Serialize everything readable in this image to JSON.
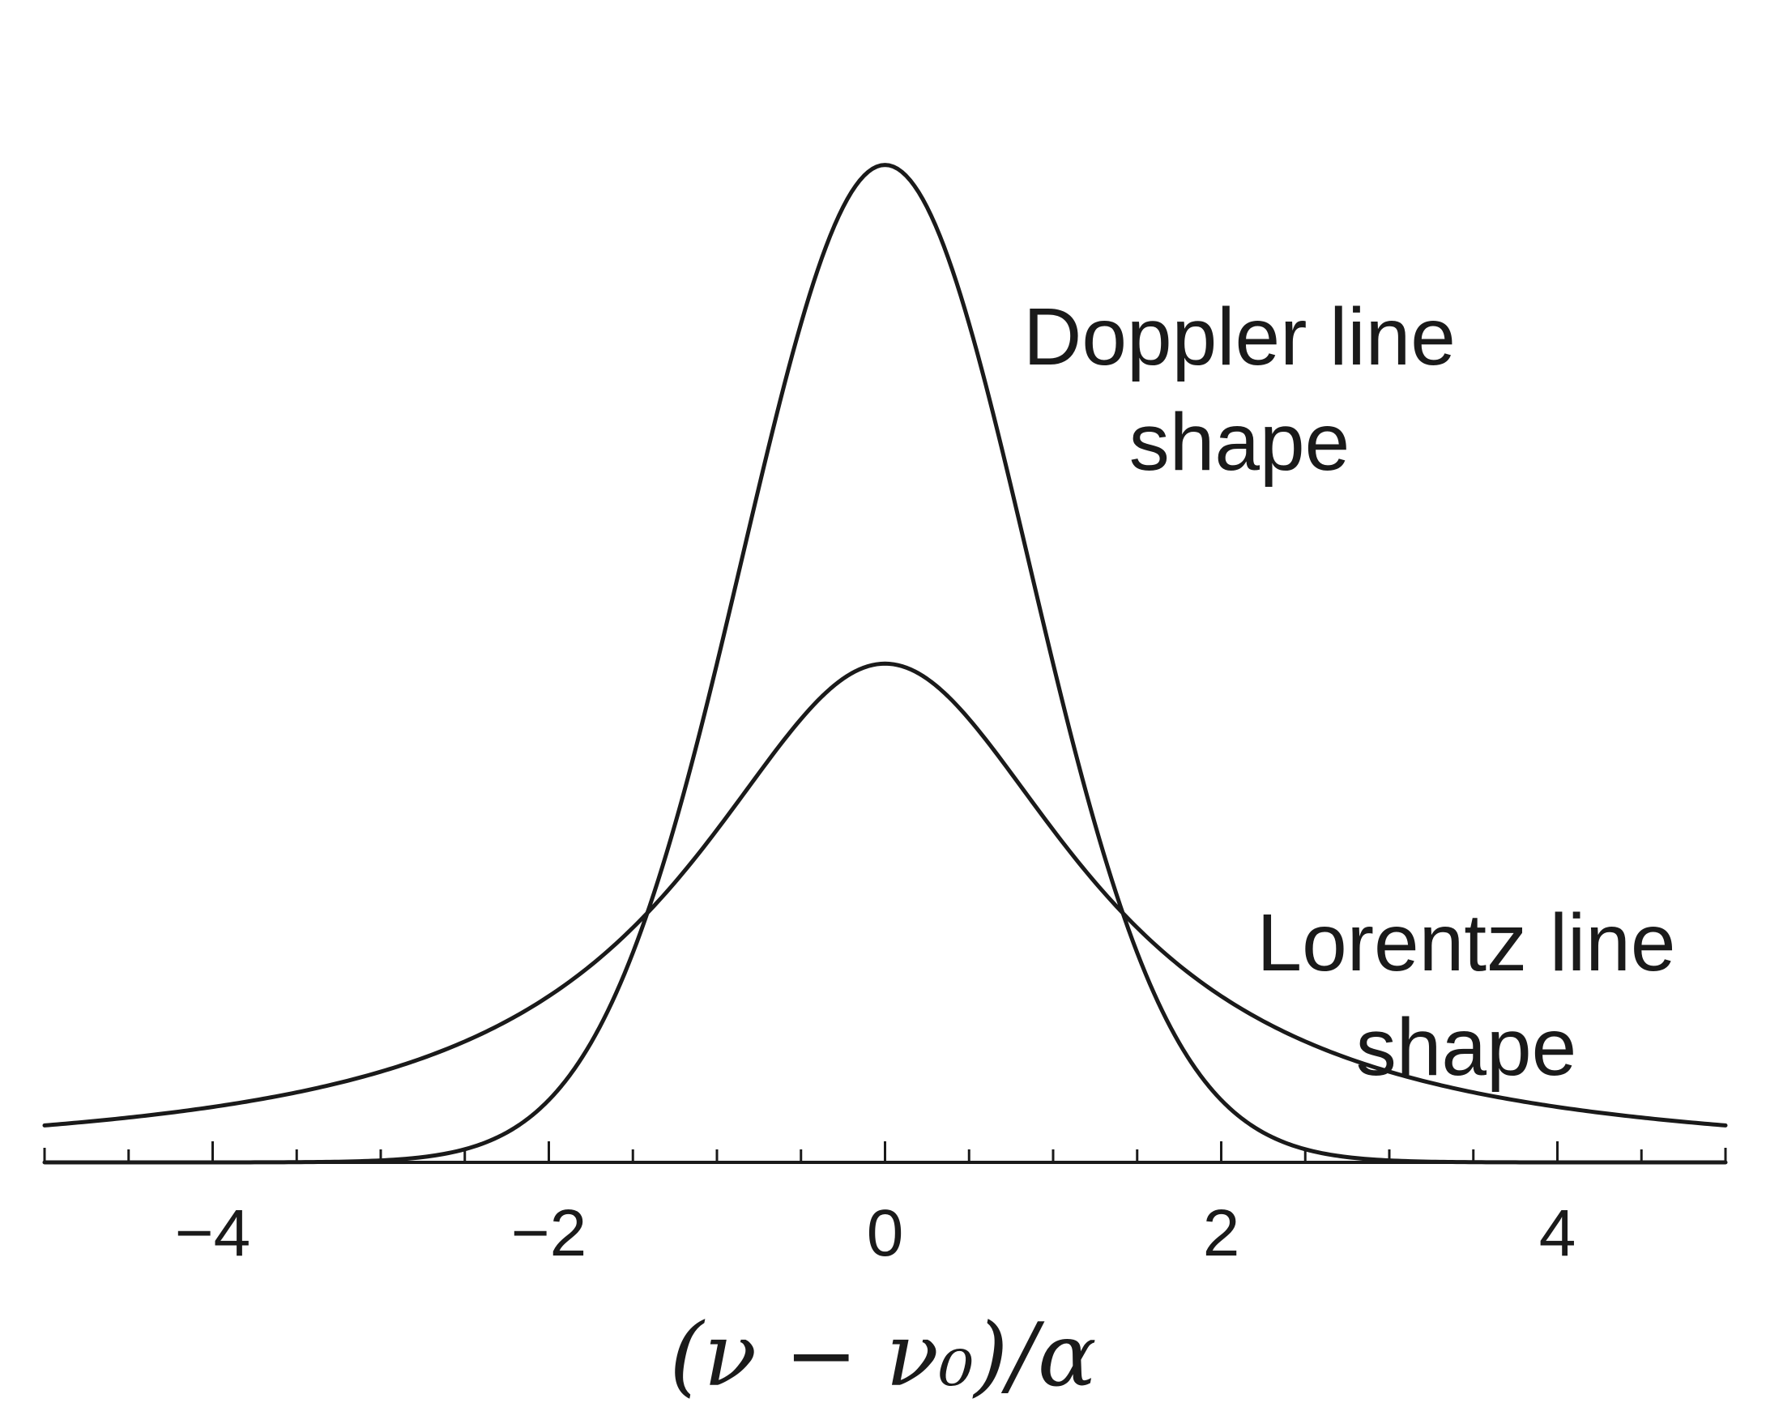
{
  "chart_data": {
    "type": "line",
    "xlabel": "(ν − ν₀)/α",
    "ylabel": "",
    "xlim": [
      -5,
      5
    ],
    "ylim": [
      0,
      1.0
    ],
    "x_ticks_major": [
      -4,
      -2,
      0,
      2,
      4
    ],
    "x_tick_labels": [
      "−4",
      "−2",
      "0",
      "2",
      "4"
    ],
    "x_ticks_minor_step": 0.5,
    "y_axis_shown": false,
    "grid": false,
    "series": [
      {
        "name": "Doppler line shape",
        "label_lines": [
          "Doppler line",
          "shape"
        ],
        "kind": "gaussian",
        "peak": 0.94,
        "x": [
          -5,
          -3,
          -2.5,
          -2,
          -1.5,
          -1.2,
          -1,
          -0.5,
          0,
          0.5,
          1,
          1.2,
          1.5,
          2,
          2.5,
          3,
          5
        ],
        "y": [
          0.0,
          0.0004,
          0.0019,
          0.0172,
          0.0988,
          0.1893,
          0.2689,
          0.6528,
          0.94,
          0.6528,
          0.2689,
          0.1893,
          0.0988,
          0.0172,
          0.0019,
          0.0004,
          0.0
        ]
      },
      {
        "name": "Lorentz line shape",
        "label_lines": [
          "Lorentz line",
          "shape"
        ],
        "kind": "lorentzian",
        "peak": 0.47,
        "x": [
          -5,
          -4,
          -3,
          -2,
          -1.5,
          -1,
          -0.5,
          0,
          0.5,
          1,
          1.5,
          2,
          3,
          4,
          5
        ],
        "y": [
          0.0419,
          0.0631,
          0.1033,
          0.1897,
          0.2606,
          0.3545,
          0.4452,
          0.47,
          0.4452,
          0.3545,
          0.2606,
          0.1897,
          0.1033,
          0.0631,
          0.0419
        ]
      }
    ]
  }
}
